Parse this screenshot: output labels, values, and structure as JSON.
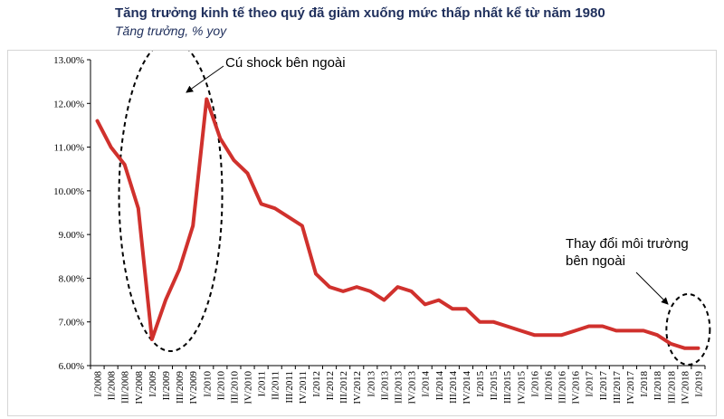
{
  "title": "Tăng trưởng kinh tế theo quý đã giảm xuống mức thấp nhất kể từ năm 1980",
  "subtitle": "Tăng trưởng, % yoy",
  "chart_data": {
    "type": "line",
    "title": "Tăng trưởng kinh tế theo quý đã giảm xuống mức thấp nhất kể từ năm 1980",
    "subtitle": "Tăng trưởng, % yoy",
    "xlabel": "",
    "ylabel": "",
    "ylim": [
      6,
      13
    ],
    "yticks": [
      "6.00%",
      "7.00%",
      "8.00%",
      "9.00%",
      "10.00%",
      "11.00%",
      "12.00%",
      "13.00%"
    ],
    "grid": false,
    "series_color": "#d0312d",
    "categories": [
      "I/2008",
      "II/2008",
      "III/2008",
      "IV/2008",
      "I/2009",
      "II/2009",
      "III/2009",
      "IV/2009",
      "I/2010",
      "II/2010",
      "III/2010",
      "IV/2010",
      "I/2011",
      "II/2011",
      "III/2011",
      "IV/2011",
      "I/2012",
      "II/2012",
      "III/2012",
      "IV/2012",
      "I/2013",
      "II/2013",
      "III/2013",
      "IV/2013",
      "I/2014",
      "II/2014",
      "III/2014",
      "IV/2014",
      "I/2015",
      "II/2015",
      "III/2015",
      "IV/2015",
      "I/2016",
      "II/2016",
      "III/2016",
      "IV/2016",
      "I/2017",
      "II/2017",
      "III/2017",
      "IV/2017",
      "I/2018",
      "II/2018",
      "III/2018",
      "IV/2018",
      "I/2019"
    ],
    "values": [
      11.6,
      11.0,
      10.6,
      9.6,
      6.6,
      7.5,
      8.2,
      9.2,
      12.1,
      11.2,
      10.7,
      10.4,
      9.7,
      9.6,
      9.4,
      9.2,
      8.1,
      7.8,
      7.7,
      7.8,
      7.7,
      7.5,
      7.8,
      7.7,
      7.4,
      7.5,
      7.3,
      7.3,
      7.0,
      7.0,
      6.9,
      6.8,
      6.7,
      6.7,
      6.7,
      6.8,
      6.9,
      6.9,
      6.8,
      6.8,
      6.8,
      6.7,
      6.5,
      6.4,
      6.4
    ],
    "annotations": [
      {
        "text": "Cú shock bên ngoài",
        "range": [
          "III/2008",
          "II/2010"
        ]
      },
      {
        "text_lines": [
          "Thay đổi môi trường",
          "bên ngoài"
        ],
        "range": [
          "III/2018",
          "I/2019"
        ]
      }
    ]
  }
}
